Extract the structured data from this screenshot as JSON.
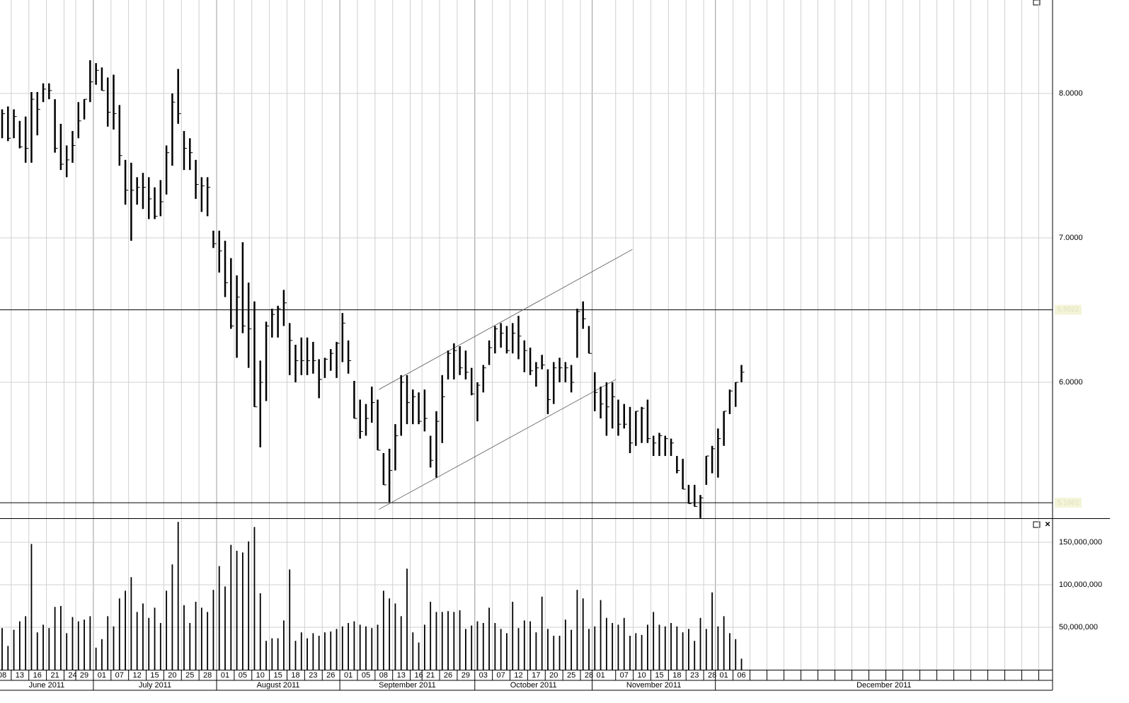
{
  "chart_data": [
    {
      "type": "ohlc",
      "categories": [
        "08",
        null,
        null,
        "13",
        null,
        null,
        "16",
        null,
        null,
        "21",
        null,
        null,
        "24",
        null,
        "29",
        null,
        null,
        "01",
        null,
        null,
        "07",
        null,
        null,
        "12",
        null,
        null,
        "15",
        null,
        null,
        "20",
        null,
        null,
        "25",
        null,
        null,
        "28",
        null,
        null,
        "01",
        null,
        null,
        "05",
        null,
        null,
        "10",
        null,
        null,
        "15",
        null,
        null,
        "18",
        null,
        null,
        "23",
        null,
        null,
        "26",
        null,
        null,
        "01",
        null,
        null,
        "05",
        null,
        null,
        "08",
        null,
        null,
        "13",
        null,
        null,
        "16",
        null,
        "21",
        null,
        null,
        "26",
        null,
        null,
        "29",
        null,
        null,
        "03",
        null,
        null,
        "07",
        null,
        null,
        "12",
        null,
        null,
        "17",
        null,
        null,
        "20",
        null,
        null,
        "25",
        null,
        null,
        "28",
        null,
        "01",
        null,
        null,
        null,
        "07",
        null,
        null,
        "10",
        null,
        null,
        "15",
        null,
        null,
        "18",
        null,
        null,
        "23",
        null,
        null,
        "28",
        null,
        "01",
        null,
        null,
        "06"
      ],
      "months": [
        "June 2011",
        "July 2011",
        "August 2011",
        "September 2011",
        "October 2011",
        "November 2011",
        "December 2011"
      ],
      "high": [
        7.89,
        7.91,
        7.89,
        7.81,
        7.84,
        8.01,
        8.01,
        8.07,
        8.07,
        7.96,
        7.79,
        7.64,
        7.74,
        7.94,
        7.96,
        8.23,
        8.21,
        8.18,
        8.11,
        8.13,
        7.92,
        7.54,
        7.52,
        7.42,
        7.45,
        7.42,
        7.35,
        7.4,
        7.64,
        8.0,
        8.17,
        7.74,
        7.69,
        7.54,
        7.42,
        7.42,
        7.05,
        7.05,
        6.98,
        6.86,
        6.74,
        6.97,
        6.69,
        6.56,
        6.15,
        6.42,
        6.51,
        6.53,
        6.64,
        6.41,
        6.26,
        6.31,
        6.31,
        6.28,
        6.16,
        6.17,
        6.23,
        6.28,
        6.48,
        6.29,
        6.01,
        5.88,
        5.85,
        5.97,
        5.88,
        5.51,
        5.54,
        5.71,
        6.05,
        6.05,
        5.95,
        5.93,
        5.95,
        5.63,
        5.8,
        6.05,
        6.22,
        6.27,
        6.25,
        6.22,
        6.1,
        6.0,
        6.12,
        6.29,
        6.39,
        6.41,
        6.39,
        6.41,
        6.46,
        6.29,
        6.24,
        6.14,
        6.19,
        6.09,
        6.14,
        6.17,
        6.14,
        6.12,
        6.51,
        6.56,
        6.39,
        6.07,
        5.97,
        6.0,
        6.0,
        5.88,
        5.85,
        5.83,
        5.8,
        5.83,
        5.88,
        5.63,
        5.65,
        5.63,
        5.61,
        5.49,
        5.47,
        5.29,
        5.29,
        5.22,
        5.49,
        5.56,
        5.68,
        5.8,
        5.95,
        6.0,
        6.12
      ],
      "low": [
        7.69,
        7.67,
        7.69,
        7.62,
        7.52,
        7.52,
        7.71,
        7.94,
        7.96,
        7.59,
        7.47,
        7.42,
        7.52,
        7.69,
        7.82,
        7.94,
        8.06,
        8.02,
        7.77,
        7.75,
        7.5,
        7.23,
        6.98,
        7.23,
        7.2,
        7.13,
        7.13,
        7.15,
        7.3,
        7.5,
        7.79,
        7.47,
        7.47,
        7.27,
        7.18,
        7.15,
        6.93,
        6.76,
        6.59,
        6.37,
        6.17,
        6.34,
        6.1,
        5.83,
        5.55,
        5.87,
        6.31,
        6.31,
        6.39,
        6.05,
        6.0,
        6.05,
        6.05,
        6.06,
        5.89,
        6.03,
        6.08,
        6.03,
        6.14,
        6.06,
        5.75,
        5.61,
        5.63,
        5.72,
        5.53,
        5.29,
        5.17,
        5.39,
        5.63,
        5.71,
        5.71,
        5.71,
        5.66,
        5.41,
        5.34,
        5.58,
        6.02,
        6.02,
        6.05,
        6.02,
        5.91,
        5.73,
        5.93,
        6.12,
        6.2,
        6.24,
        6.2,
        6.2,
        6.16,
        6.07,
        6.05,
        5.97,
        6.09,
        5.78,
        5.85,
        6.0,
        6.0,
        5.93,
        6.17,
        6.37,
        6.2,
        5.8,
        5.75,
        5.63,
        5.68,
        5.63,
        5.68,
        5.51,
        5.56,
        5.58,
        5.58,
        5.49,
        5.49,
        5.49,
        5.49,
        5.37,
        5.26,
        5.16,
        5.14,
        5.06,
        5.29,
        5.37,
        5.34,
        5.56,
        5.78,
        5.83,
        6.0
      ],
      "close": [
        7.86,
        7.69,
        7.84,
        7.63,
        7.62,
        7.96,
        7.89,
        8.03,
        8.02,
        7.62,
        7.51,
        7.54,
        7.64,
        7.81,
        7.96,
        8.08,
        8.16,
        8.02,
        7.87,
        7.86,
        7.57,
        7.33,
        7.33,
        7.35,
        7.35,
        7.27,
        7.15,
        7.25,
        7.59,
        7.94,
        7.86,
        7.62,
        7.59,
        7.37,
        7.36,
        7.35,
        6.96,
        6.91,
        6.69,
        6.39,
        6.59,
        6.39,
        6.37,
        5.83,
        6.0,
        6.39,
        6.47,
        6.51,
        6.55,
        6.29,
        6.15,
        6.15,
        6.15,
        6.15,
        6.02,
        6.16,
        6.2,
        6.27,
        6.41,
        6.15,
        5.75,
        5.66,
        5.75,
        5.86,
        5.53,
        5.29,
        5.39,
        5.63,
        6.0,
        5.86,
        5.9,
        5.73,
        5.75,
        5.46,
        5.73,
        5.9,
        6.2,
        6.22,
        6.1,
        6.07,
        5.92,
        5.98,
        6.1,
        6.24,
        6.37,
        6.34,
        6.22,
        6.34,
        6.32,
        6.22,
        6.08,
        6.1,
        6.12,
        5.88,
        6.1,
        6.1,
        6.1,
        6.0,
        6.49,
        6.44,
        6.2,
        5.93,
        5.85,
        5.83,
        5.9,
        5.71,
        5.71,
        5.58,
        5.8,
        5.82,
        5.61,
        5.58,
        5.63,
        5.61,
        5.58,
        5.39,
        5.26,
        5.16,
        5.14,
        5.2,
        5.49,
        5.54,
        5.61,
        5.8,
        5.94,
        6.0,
        6.07
      ],
      "ylim": [
        5.059,
        8.647
      ],
      "yticks": [
        {
          "value": 6,
          "label": "6.0000"
        },
        {
          "value": 7,
          "label": "7.0000"
        },
        {
          "value": 8,
          "label": "8.0000"
        }
      ],
      "hlines": [
        {
          "value": 6.5022,
          "label": "6.5022"
        },
        {
          "value": 5.1662,
          "label": "5.1662"
        }
      ],
      "trendlines": [
        {
          "x": [
            64.2,
            107.4
          ],
          "y": [
            5.95,
            6.92
          ]
        },
        {
          "x": [
            64.2,
            104.6
          ],
          "y": [
            5.12,
            6.02
          ]
        }
      ],
      "grid": true
    },
    {
      "type": "bar",
      "values": [
        49000000,
        28000000,
        47000000,
        57000000,
        63000000,
        148000000,
        44000000,
        53000000,
        49000000,
        74000000,
        75000000,
        43000000,
        62000000,
        57000000,
        59000000,
        63000000,
        26000000,
        36000000,
        63000000,
        51000000,
        84000000,
        93000000,
        109000000,
        68000000,
        78000000,
        61000000,
        73000000,
        55000000,
        93000000,
        124000000,
        174000000,
        76000000,
        55000000,
        80000000,
        73000000,
        68000000,
        94000000,
        122000000,
        98000000,
        147000000,
        140000000,
        138000000,
        151000000,
        168000000,
        90000000,
        34000000,
        37000000,
        37000000,
        58000000,
        118000000,
        34000000,
        44000000,
        37000000,
        43000000,
        40000000,
        44000000,
        45000000,
        48000000,
        51000000,
        55000000,
        57000000,
        53000000,
        51000000,
        49000000,
        53000000,
        93000000,
        84000000,
        78000000,
        63000000,
        119000000,
        44000000,
        32000000,
        53000000,
        80000000,
        68000000,
        68000000,
        69000000,
        68000000,
        70000000,
        48000000,
        52000000,
        57000000,
        55000000,
        73000000,
        55000000,
        48000000,
        43000000,
        80000000,
        49000000,
        58000000,
        57000000,
        44000000,
        86000000,
        48000000,
        40000000,
        40000000,
        59000000,
        47000000,
        94000000,
        84000000,
        48000000,
        51000000,
        82000000,
        61000000,
        55000000,
        53000000,
        61000000,
        40000000,
        43000000,
        41000000,
        53000000,
        68000000,
        53000000,
        51000000,
        55000000,
        51000000,
        44000000,
        48000000,
        34000000,
        61000000,
        48000000,
        91000000,
        51000000,
        63000000,
        43000000,
        36000000,
        13000000
      ],
      "ylim": [
        0,
        177500000
      ],
      "yticks": [
        {
          "value": 50000000,
          "label": "50,000,000"
        },
        {
          "value": 100000000,
          "label": "100,000,000"
        },
        {
          "value": 150000000,
          "label": "150,000,000"
        }
      ],
      "color": "#000000",
      "grid": true
    }
  ]
}
